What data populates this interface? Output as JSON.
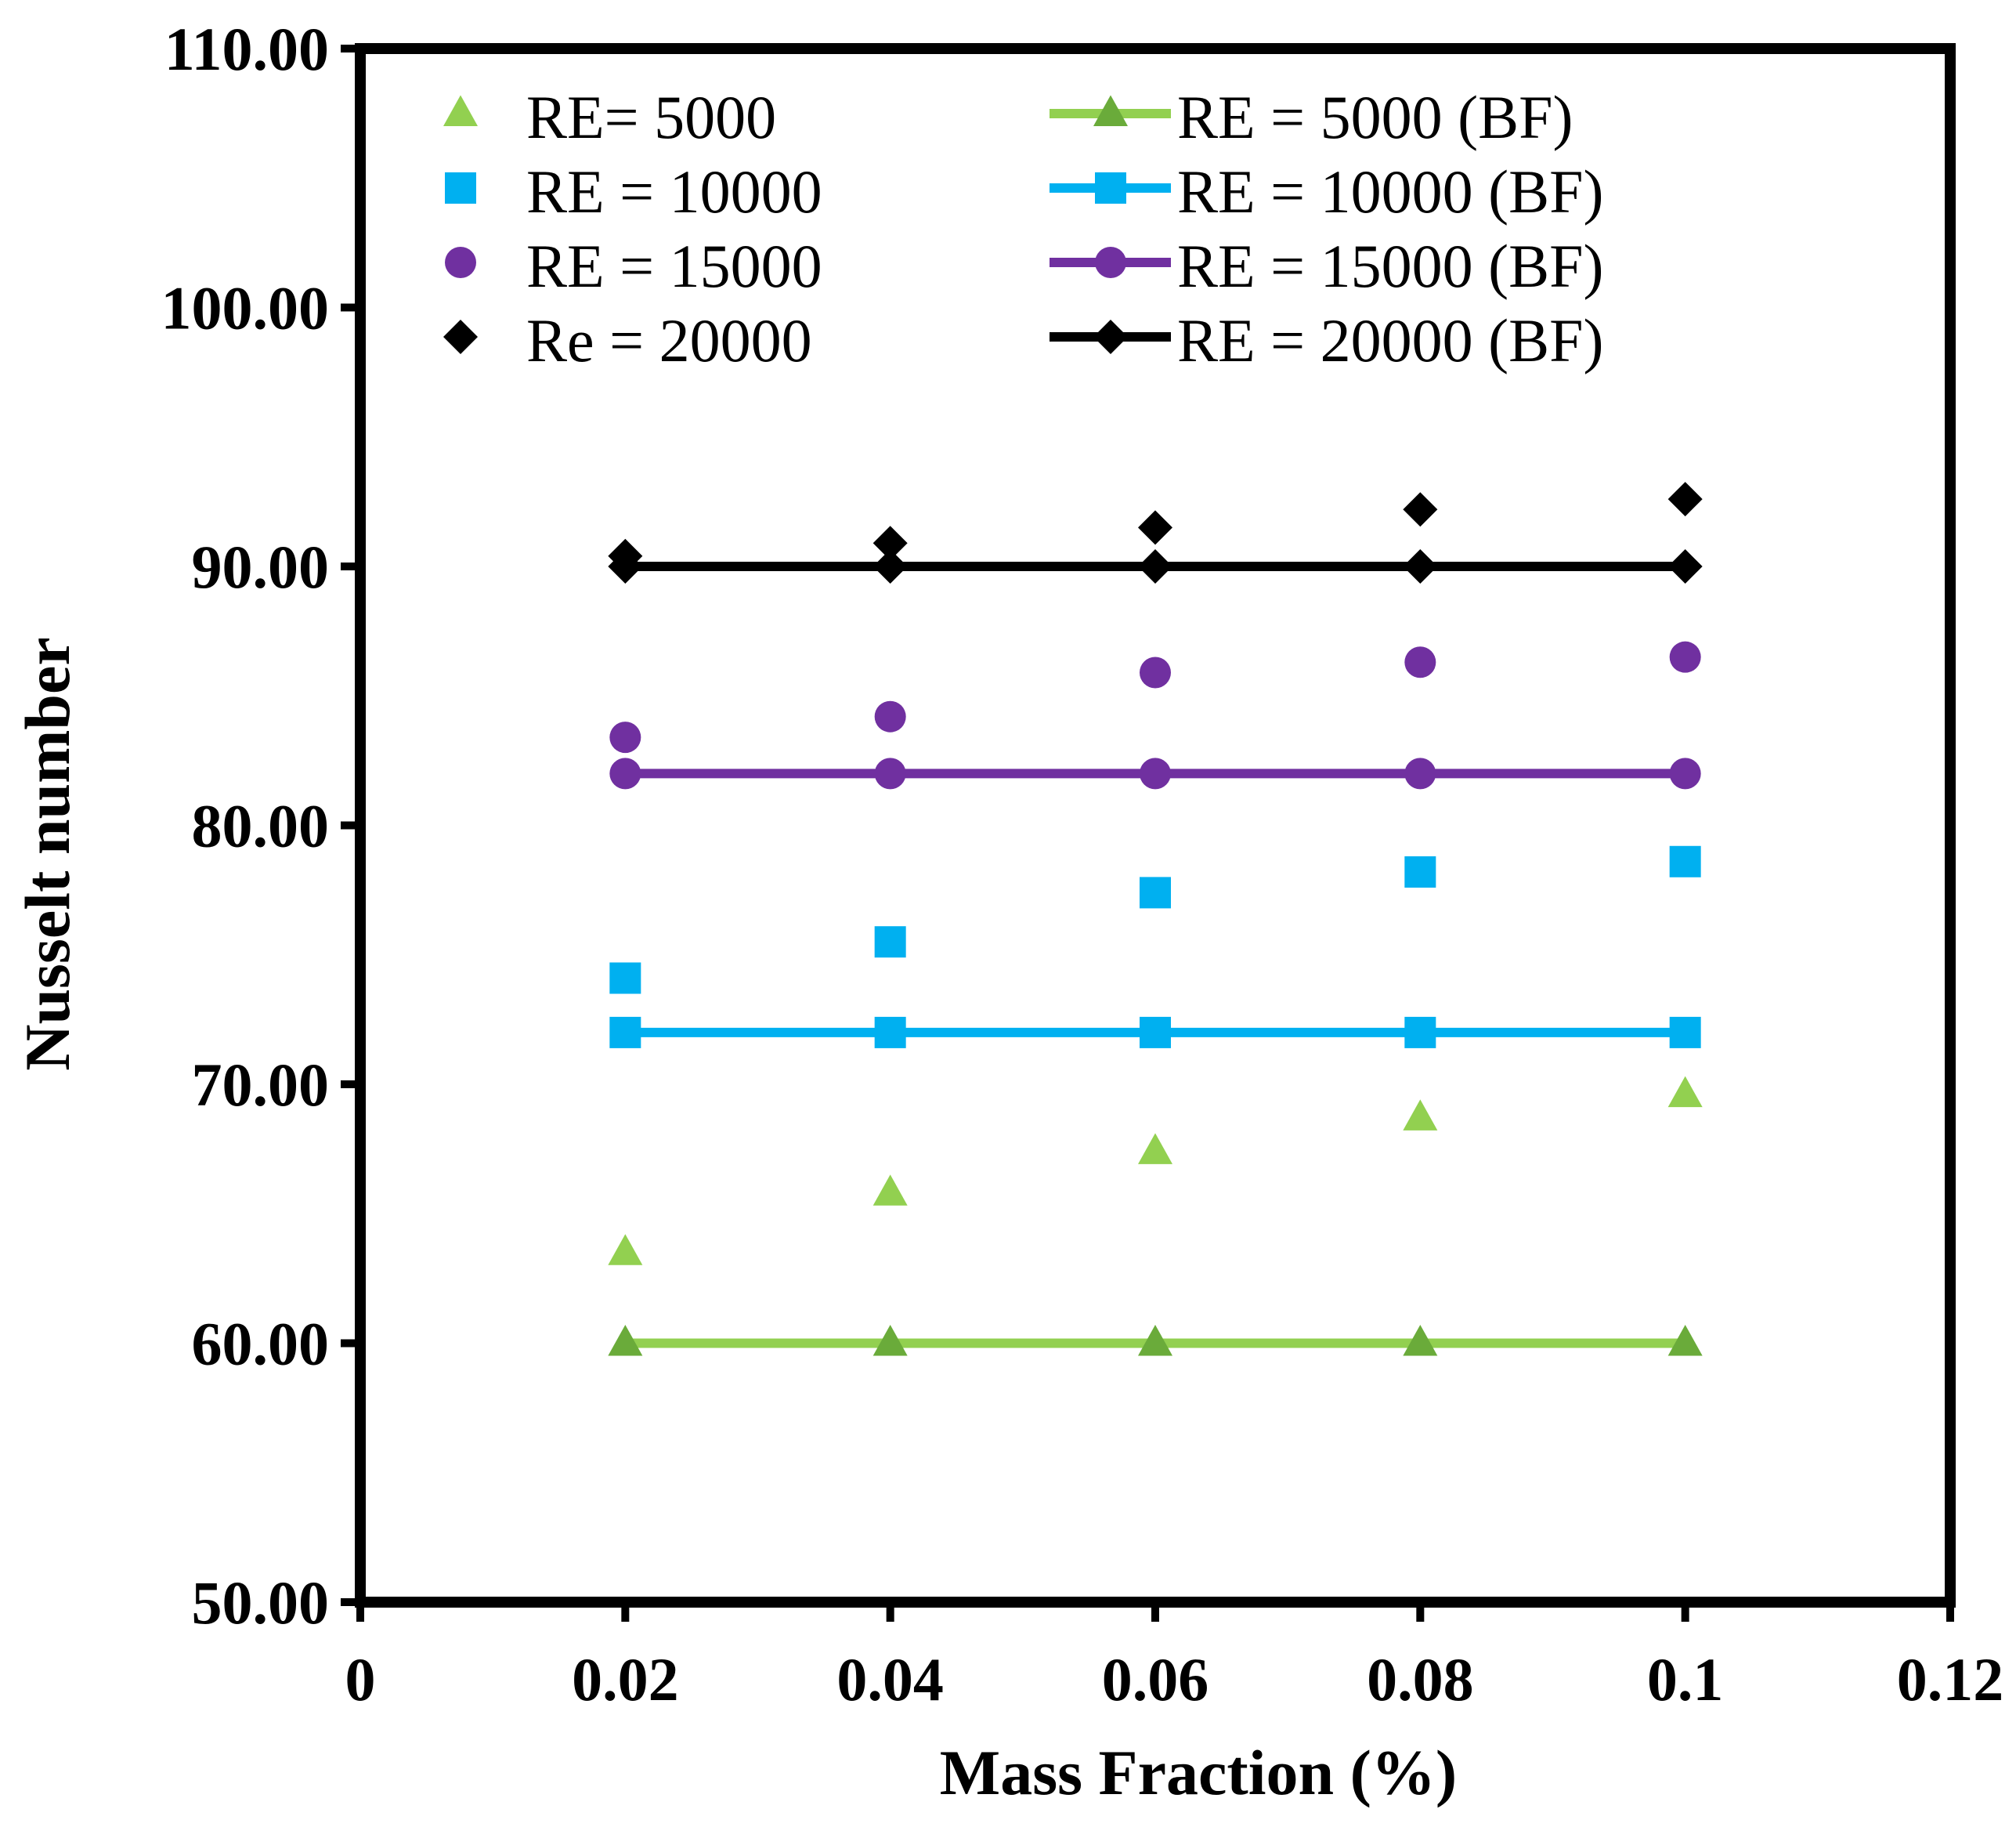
{
  "chart_data": {
    "type": "scatter",
    "title": "",
    "xlabel": "Mass Fraction (%)",
    "ylabel": "Nusselt number",
    "xlim": [
      0,
      0.12
    ],
    "ylim": [
      50,
      110
    ],
    "x_ticks": [
      0,
      0.02,
      0.04,
      0.06,
      0.08,
      0.1,
      0.12
    ],
    "x_tick_labels": [
      "0",
      "0.02",
      "0.04",
      "0.06",
      "0.08",
      "0.1",
      "0.12"
    ],
    "y_ticks": [
      50,
      60,
      70,
      80,
      90,
      100,
      110
    ],
    "y_tick_labels": [
      "50.00",
      "60.00",
      "70.00",
      "80.00",
      "90.00",
      "100.00",
      "110.00"
    ],
    "grid": false,
    "legend_position": "top",
    "x": [
      0.02,
      0.04,
      0.06,
      0.08,
      0.1
    ],
    "series": [
      {
        "name": "RE= 5000",
        "style": "markers",
        "marker": "triangle",
        "color": "#92D050",
        "values": [
          63.5,
          65.8,
          67.4,
          68.7,
          69.6
        ]
      },
      {
        "name": "RE = 10000",
        "style": "markers",
        "marker": "square",
        "color": "#00B0F0",
        "values": [
          74.1,
          75.5,
          77.4,
          78.2,
          78.6
        ]
      },
      {
        "name": "RE = 15000",
        "style": "markers",
        "marker": "circle",
        "color": "#7030A0",
        "values": [
          83.4,
          84.2,
          85.9,
          86.3,
          86.5
        ]
      },
      {
        "name": "Re = 20000",
        "style": "markers",
        "marker": "diamond",
        "color": "#000000",
        "values": [
          90.4,
          90.9,
          91.5,
          92.2,
          92.6
        ]
      },
      {
        "name": "RE = 5000 (BF)",
        "style": "line-markers",
        "marker": "triangle",
        "color": "#92D050",
        "marker_color": "#6AAB3A",
        "values": [
          60,
          60,
          60,
          60,
          60
        ]
      },
      {
        "name": "RE = 10000 (BF)",
        "style": "line-markers",
        "marker": "square",
        "color": "#00B0F0",
        "marker_color": "#00B0F0",
        "values": [
          72,
          72,
          72,
          72,
          72
        ]
      },
      {
        "name": "RE = 15000 (BF)",
        "style": "line-markers",
        "marker": "circle",
        "color": "#7030A0",
        "marker_color": "#7030A0",
        "values": [
          82,
          82,
          82,
          82,
          82
        ]
      },
      {
        "name": "RE = 20000 (BF)",
        "style": "line-markers",
        "marker": "diamond",
        "color": "#000000",
        "marker_color": "#000000",
        "values": [
          90,
          90,
          90,
          90,
          90
        ]
      }
    ]
  }
}
